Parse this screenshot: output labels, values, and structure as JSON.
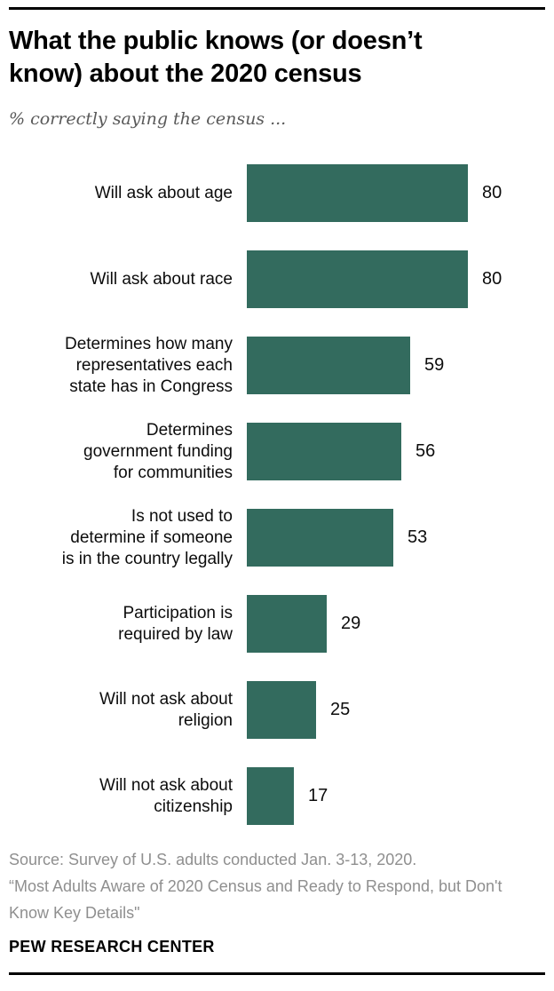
{
  "page": {
    "title": "What the public knows (or doesn’t know) about the 2020 census",
    "subtitle": "% correctly saying the census ...",
    "source_line1": "Source: Survey of U.S. adults conducted Jan. 3-13, 2020.",
    "source_line2": "“Most Adults Aware of 2020 Census and Ready to Respond, but Don't Know Key Details\"",
    "brand": "PEW RESEARCH CENTER"
  },
  "chart_data": {
    "type": "bar",
    "orientation": "horizontal",
    "title": "What the public knows (or doesn’t know) about the 2020 census",
    "subtitle": "% correctly saying the census ...",
    "categories": [
      "Will ask about age",
      "Will ask about race",
      "Determines how many\nrepresentatives each\nstate has in Congress",
      "Determines\ngovernment funding\nfor communities",
      "Is not used to\ndetermine if someone\nis in the country legally",
      "Participation is\nrequired by law",
      "Will not ask about\nreligion",
      "Will not ask about\ncitizenship"
    ],
    "values": [
      80,
      80,
      59,
      56,
      53,
      29,
      25,
      17
    ],
    "value_axis_max": 80,
    "value_labels_shown": true,
    "bar_color": "#336b5e",
    "grid": false,
    "legend": false,
    "unit": "percent"
  }
}
